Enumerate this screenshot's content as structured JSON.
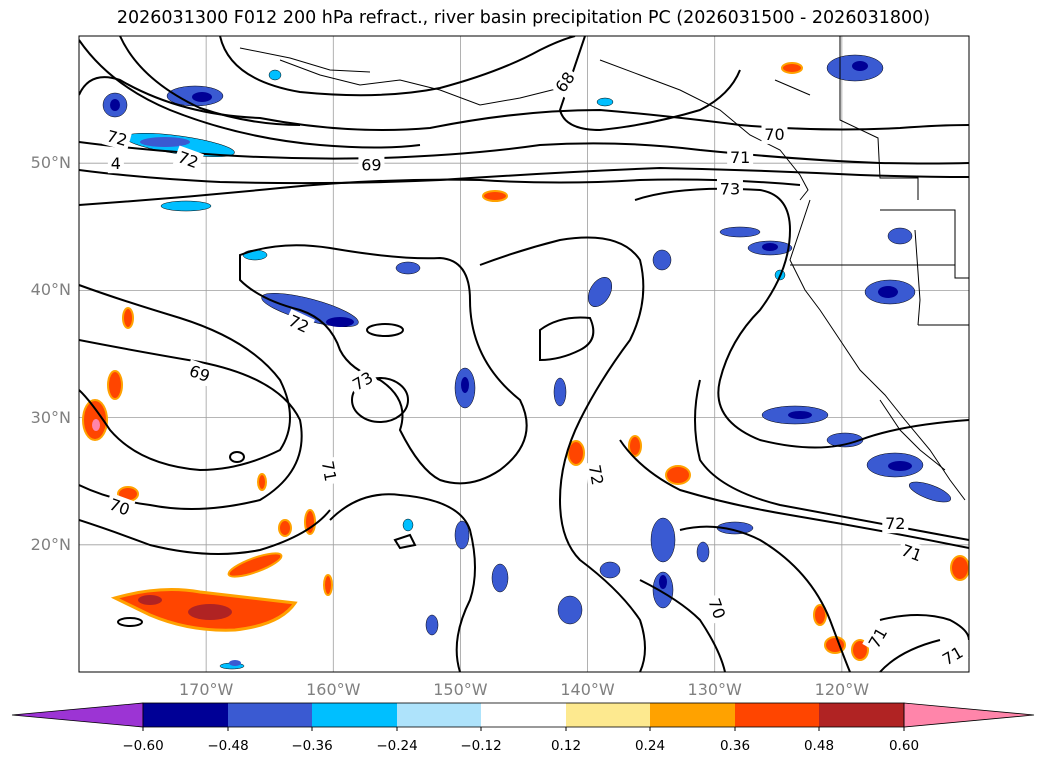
{
  "title": "2026031300 F012 200 hPa refract., river basin precipitation PC (2026031500 - 2026031800)",
  "map": {
    "lon_range": [
      -180,
      -110
    ],
    "lat_range": [
      10,
      60
    ],
    "lat_ticks": [
      {
        "value": 50,
        "label": "50°N"
      },
      {
        "value": 40,
        "label": "40°N"
      },
      {
        "value": 30,
        "label": "30°N"
      },
      {
        "value": 20,
        "label": "20°N"
      }
    ],
    "lon_ticks": [
      {
        "value": -170,
        "label": "170°W"
      },
      {
        "value": -160,
        "label": "160°W"
      },
      {
        "value": -150,
        "label": "150°W"
      },
      {
        "value": -140,
        "label": "140°W"
      },
      {
        "value": -130,
        "label": "130°W"
      },
      {
        "value": -120,
        "label": "120°W"
      }
    ],
    "contour_labels": [
      {
        "text": "68",
        "lon": -141.8,
        "lat": 56.4,
        "rot": -55
      },
      {
        "text": "69",
        "lon": -157.0,
        "lat": 49.9,
        "rot": 0
      },
      {
        "text": "70",
        "lon": -125.3,
        "lat": 52.3,
        "rot": 0
      },
      {
        "text": "71",
        "lon": -128.0,
        "lat": 50.5,
        "rot": 0
      },
      {
        "text": "73",
        "lon": -128.8,
        "lat": 48.0,
        "rot": 0
      },
      {
        "text": "72",
        "lon": -171.4,
        "lat": 50.3,
        "rot": 20
      },
      {
        "text": "4",
        "lon": -177.1,
        "lat": 50.0,
        "rot": 0
      },
      {
        "text": "72",
        "lon": -177.0,
        "lat": 52.0,
        "rot": 15
      },
      {
        "text": "72",
        "lon": -162.7,
        "lat": 37.4,
        "rot": 25
      },
      {
        "text": "69",
        "lon": -170.5,
        "lat": 33.5,
        "rot": 20
      },
      {
        "text": "73",
        "lon": -157.7,
        "lat": 32.9,
        "rot": -30
      },
      {
        "text": "71",
        "lon": -160.3,
        "lat": 25.8,
        "rot": 80
      },
      {
        "text": "70",
        "lon": -176.8,
        "lat": 23.0,
        "rot": 20
      },
      {
        "text": "72",
        "lon": -139.3,
        "lat": 25.5,
        "rot": 80
      },
      {
        "text": "72",
        "lon": -115.8,
        "lat": 21.7,
        "rot": 0
      },
      {
        "text": "71",
        "lon": -114.5,
        "lat": 19.4,
        "rot": 20
      },
      {
        "text": "70",
        "lon": -129.8,
        "lat": 15.0,
        "rot": 70
      },
      {
        "text": "71",
        "lon": -117.2,
        "lat": 12.7,
        "rot": -60
      },
      {
        "text": "71",
        "lon": -111.3,
        "lat": 11.3,
        "rot": -30
      }
    ]
  },
  "colorbar": {
    "colors": [
      "#9c34d4",
      "#000096",
      "#3a5ad2",
      "#00bfff",
      "#aee3fb",
      "#ffffff",
      "#fde98f",
      "#ffa200",
      "#ff4500",
      "#b02323",
      "#ff85aa"
    ],
    "ticks": [
      "−0.60",
      "−0.48",
      "−0.36",
      "−0.24",
      "−0.12",
      "0.12",
      "0.24",
      "0.36",
      "0.48",
      "0.60"
    ]
  }
}
